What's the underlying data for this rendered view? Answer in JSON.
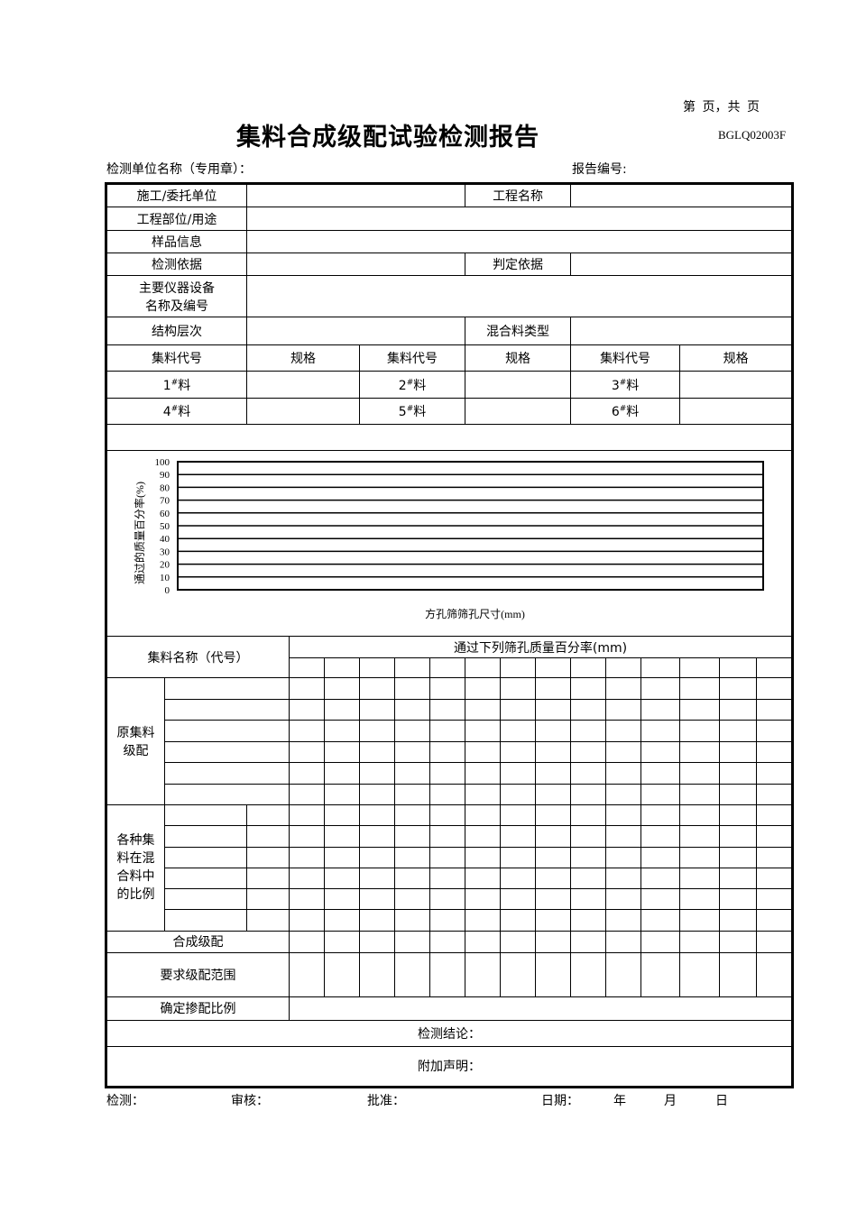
{
  "header": {
    "page_info": "第  页，共  页",
    "title": "集料合成级配试验检测报告",
    "form_code": "BGLQ02003F",
    "org_label": "检测单位名称（专用章）：",
    "report_no_label": "报告编号:"
  },
  "info": {
    "contractor": "施工/委托单位",
    "project_name": "工程名称",
    "location": "工程部位/用途",
    "sample_info": "样品信息",
    "test_basis": "检测依据",
    "judgment_basis": "判定依据",
    "equipment_line1": "主要仪器设备",
    "equipment_line2": "名称及编号",
    "layer": "结构层次",
    "mix_type": "混合料类型",
    "agg_code": "集料代号",
    "spec": "规格",
    "materials": [
      {
        "num": "1",
        "mark": "#",
        "unit": "料"
      },
      {
        "num": "2",
        "mark": "#",
        "unit": "料"
      },
      {
        "num": "3",
        "mark": "#",
        "unit": "料"
      },
      {
        "num": "4",
        "mark": "#",
        "unit": "料"
      },
      {
        "num": "5",
        "mark": "#",
        "unit": "料"
      },
      {
        "num": "6",
        "mark": "#",
        "unit": "料"
      }
    ]
  },
  "chart_data": {
    "type": "line",
    "title": "",
    "xlabel": "方孔筛筛孔尺寸(mm)",
    "ylabel": "通过的质量百分率(%)",
    "ylim": [
      0,
      100
    ],
    "yticks": [
      "0",
      "10",
      "20",
      "30",
      "40",
      "50",
      "60",
      "70",
      "80",
      "90",
      "100"
    ],
    "grid": true,
    "series": []
  },
  "grading": {
    "name_header": "集料名称（代号）",
    "pass_header": "通过下列筛孔质量百分率(mm)",
    "raw_label": "原集料级配",
    "ratio_label": "各种集料在混合料中的比例",
    "combined": "合成级配",
    "required": "要求级配范围",
    "final_ratio": "确定掺配比例",
    "conclusion": "检测结论：",
    "statement": "附加声明："
  },
  "footer": {
    "tester": "检测：",
    "reviewer": "审核：",
    "approver": "批准：",
    "date": "日期：",
    "year": "年",
    "month": "月",
    "day": "日"
  }
}
